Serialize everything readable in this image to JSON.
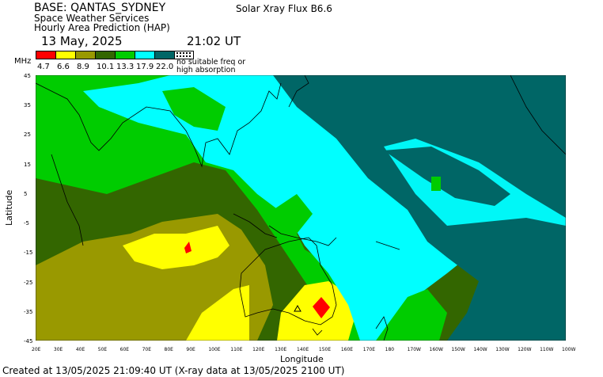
{
  "header": {
    "base": "BASE: QANTAS_SYDNEY",
    "line2": "Space Weather Services",
    "line3": "Hourly Area Prediction (HAP)",
    "date": "13 May, 2025",
    "time": "21:02 UT",
    "flux": "Solar Xray Flux B6.6"
  },
  "legend": {
    "unit": "MHz",
    "values": [
      "4.7",
      "6.6",
      "8.9",
      "10.1",
      "13.3",
      "17.9",
      "22.0"
    ],
    "colors": [
      "#ff0000",
      "#ffff00",
      "#999900",
      "#336600",
      "#00cc00",
      "#00ffff",
      "#006666"
    ],
    "no_freq_line1": "no suitable freq or",
    "no_freq_line2": "high absorption"
  },
  "axes": {
    "ylabel": "Latitude",
    "xlabel": "Longitude",
    "yticks": [
      "45",
      "35",
      "25",
      "15",
      "5",
      "-5",
      "-15",
      "-25",
      "-35",
      "-45"
    ],
    "xticks": [
      "20E",
      "30E",
      "40E",
      "50E",
      "60E",
      "70E",
      "80E",
      "90E",
      "100E",
      "110E",
      "120E",
      "130E",
      "140E",
      "150E",
      "160E",
      "170E",
      "180",
      "170W",
      "160W",
      "150W",
      "140W",
      "130W",
      "120W",
      "110W",
      "100W"
    ]
  },
  "map": {
    "longitude_range": [
      20,
      260
    ],
    "latitude_range": [
      -45,
      45
    ],
    "base_station": "QANTAS_SYDNEY"
  },
  "footer": "Created at 13/05/2025 21:09:40 UT (X-ray data at 13/05/2025 2100 UT)"
}
